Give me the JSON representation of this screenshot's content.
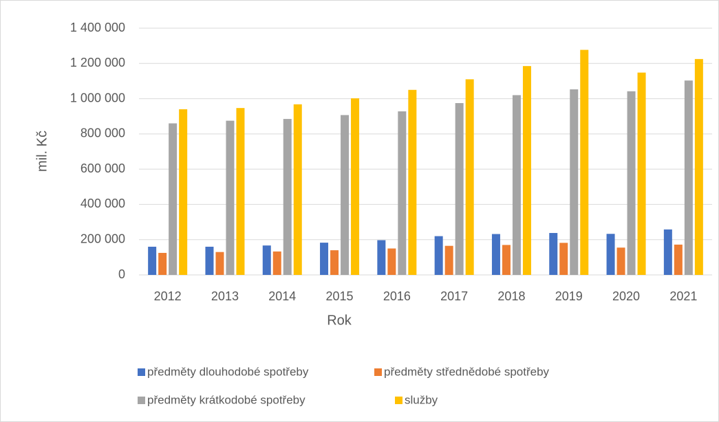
{
  "chart_data": {
    "type": "bar",
    "x_label": "Rok",
    "y_label": "mil. Kč",
    "categories": [
      "2012",
      "2013",
      "2014",
      "2015",
      "2016",
      "2017",
      "2018",
      "2019",
      "2020",
      "2021"
    ],
    "series": [
      {
        "name": "předměty dlouhodobé spotřeby",
        "color": "#4472c4",
        "values": [
          160000,
          160000,
          167000,
          183000,
          197000,
          220000,
          232000,
          238000,
          233000,
          258000
        ]
      },
      {
        "name": "předměty střednědobé spotřeby",
        "color": "#ed7d31",
        "values": [
          125000,
          130000,
          133000,
          140000,
          150000,
          165000,
          170000,
          182000,
          155000,
          172000
        ]
      },
      {
        "name": "předměty krátkodobé spotřeby",
        "color": "#a5a5a5",
        "values": [
          860000,
          875000,
          885000,
          907000,
          928000,
          975000,
          1020000,
          1053000,
          1042000,
          1103000
        ]
      },
      {
        "name": "služby",
        "color": "#ffc000",
        "values": [
          940000,
          947000,
          968000,
          1002000,
          1050000,
          1110000,
          1185000,
          1277000,
          1148000,
          1225000
        ]
      }
    ],
    "ylim": [
      0,
      1400000
    ],
    "yticks": [
      0,
      {
        "value": 200000,
        "label": "200 000"
      },
      {
        "value": 400000,
        "label": "400 000"
      },
      {
        "value": 600000,
        "label": "600 000"
      },
      {
        "value": 800000,
        "label": "800 000"
      },
      {
        "value": 1000000,
        "label": "1 000 000"
      },
      {
        "value": 1200000,
        "label": "1 200 000"
      },
      {
        "value": 1400000,
        "label": "1 400 000"
      }
    ],
    "grid": true,
    "legend": "bottom"
  }
}
